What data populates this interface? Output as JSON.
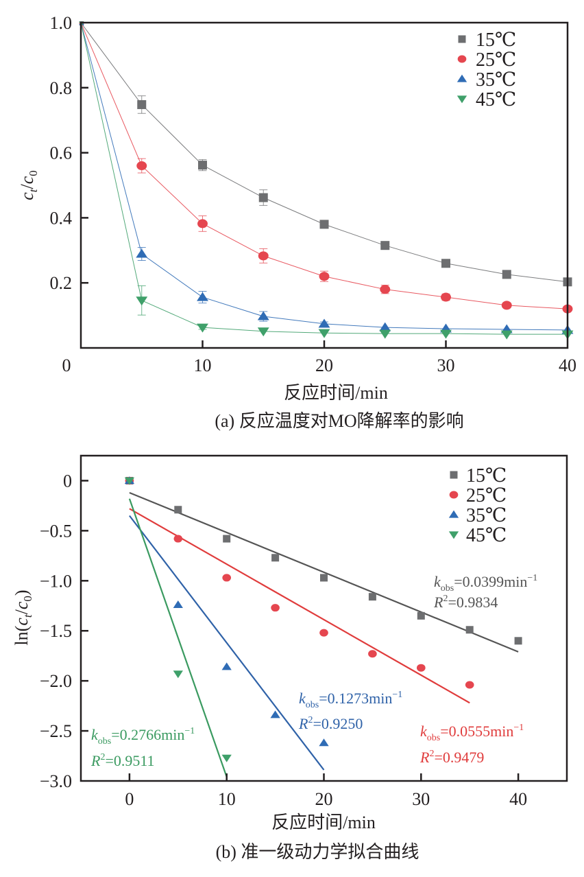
{
  "chart_data": [
    {
      "id": "a",
      "type": "line",
      "caption": "(a) 反应温度对MO降解率的影响",
      "title": "",
      "xlabel": "反应时间/min",
      "ylabel": "c_t/c_0",
      "ylabel_parts": {
        "c1": "c",
        "s1": "t",
        "slash": "/",
        "c2": "c",
        "s2": "0"
      },
      "xlim": [
        0,
        40
      ],
      "ylim": [
        0,
        1.0
      ],
      "xticks": [
        0,
        10,
        20,
        30,
        40
      ],
      "xtick_labels": [
        "0",
        "10",
        "20",
        "30",
        "40"
      ],
      "yticks": [
        0.2,
        0.4,
        0.6,
        0.8,
        1.0
      ],
      "ytick_labels": [
        "0.2",
        "0.4",
        "0.6",
        "0.8",
        "1.0"
      ],
      "grid": false,
      "legend_position": "top-right",
      "x": [
        0,
        5,
        10,
        15,
        20,
        25,
        30,
        35,
        40
      ],
      "series": [
        {
          "name": "15℃",
          "marker": "square",
          "color": "#6d6e70",
          "values": [
            1.0,
            0.748,
            0.562,
            0.462,
            0.38,
            0.315,
            0.26,
            0.226,
            0.203
          ],
          "errors": [
            0,
            0.027,
            0.017,
            0.024,
            0.006,
            0.006,
            0.006,
            0.006,
            0.01
          ]
        },
        {
          "name": "25℃",
          "marker": "circle",
          "color": "#e5464f",
          "values": [
            1.0,
            0.56,
            0.382,
            0.283,
            0.22,
            0.18,
            0.156,
            0.131,
            0.12
          ],
          "errors": [
            0,
            0.022,
            0.024,
            0.022,
            0.016,
            0.013,
            0.01,
            0.006,
            0.006
          ]
        },
        {
          "name": "35℃",
          "marker": "triangle-up",
          "color": "#2f6cb5",
          "values": [
            1.0,
            0.289,
            0.156,
            0.097,
            0.074,
            0.063,
            0.059,
            0.057,
            0.055
          ],
          "errors": [
            0,
            0.02,
            0.018,
            0.015,
            0.006,
            0.005,
            0.005,
            0.005,
            0.005
          ]
        },
        {
          "name": "45℃",
          "marker": "triangle-down",
          "color": "#3fa06a",
          "values": [
            1.0,
            0.146,
            0.063,
            0.051,
            0.046,
            0.044,
            0.044,
            0.042,
            0.042
          ],
          "errors": [
            0,
            0.045,
            0.006,
            0.004,
            0.004,
            0.004,
            0.004,
            0.004,
            0.004
          ]
        }
      ]
    },
    {
      "id": "b",
      "type": "scatter",
      "caption": "(b) 准一级动力学拟合曲线",
      "title": "",
      "xlabel": "反应时间/min",
      "ylabel": "ln(c_t/c_0)",
      "ylabel_parts": {
        "pre": "ln(",
        "c1": "c",
        "s1": "t",
        "slash": "/",
        "c2": "c",
        "s2": "0",
        "post": ")"
      },
      "xlim": [
        -5,
        45
      ],
      "ylim": [
        -3.0,
        0.25
      ],
      "xticks": [
        0,
        10,
        20,
        30,
        40
      ],
      "xtick_labels": [
        "0",
        "10",
        "20",
        "30",
        "40"
      ],
      "yticks": [
        0,
        -0.5,
        -1.0,
        -1.5,
        -2.0,
        -2.5,
        -3.0
      ],
      "ytick_labels": [
        "0",
        "−0.5",
        "−1.0",
        "−1.5",
        "−2.0",
        "−2.5",
        "−3.0"
      ],
      "grid": false,
      "legend_position": "top-right",
      "series": [
        {
          "name": "15℃",
          "marker": "square",
          "color": "#6d6e70",
          "line_color": "#555555",
          "x": [
            0,
            5,
            10,
            15,
            20,
            25,
            30,
            35,
            40
          ],
          "values": [
            0,
            -0.29,
            -0.58,
            -0.77,
            -0.97,
            -1.16,
            -1.35,
            -1.49,
            -1.6
          ],
          "fit": {
            "x": [
              0,
              40
            ],
            "y": [
              -0.12,
              -1.71
            ]
          },
          "annotation": {
            "k_label": "k",
            "k_sub": "obs",
            "k_value": "=0.0399min",
            "k_sup": "−1",
            "r_label": "R",
            "r_sup": "2",
            "r_value": "=0.9834",
            "k_obs": 0.0399,
            "r2": 0.9834
          }
        },
        {
          "name": "25℃",
          "marker": "circle",
          "color": "#e5464f",
          "line_color": "#e03c3c",
          "x": [
            0,
            5,
            10,
            15,
            20,
            25,
            30,
            35
          ],
          "values": [
            0,
            -0.58,
            -0.97,
            -1.27,
            -1.52,
            -1.73,
            -1.87,
            -2.04
          ],
          "fit": {
            "x": [
              0,
              35
            ],
            "y": [
              -0.28,
              -2.22
            ]
          },
          "annotation": {
            "k_label": "k",
            "k_sub": "obs",
            "k_value": "=0.0555min",
            "k_sup": "−1",
            "r_label": "R",
            "r_sup": "2",
            "r_value": "=0.9479",
            "k_obs": 0.0555,
            "r2": 0.9479
          }
        },
        {
          "name": "35℃",
          "marker": "triangle-up",
          "color": "#2f6cb5",
          "line_color": "#2f62a8",
          "x": [
            0,
            5,
            10,
            15,
            20
          ],
          "values": [
            0,
            -1.24,
            -1.86,
            -2.34,
            -2.62
          ],
          "fit": {
            "x": [
              0,
              20
            ],
            "y": [
              -0.35,
              -2.89
            ]
          },
          "annotation": {
            "k_label": "k",
            "k_sub": "obs",
            "k_value": "=0.1273min",
            "k_sup": "−1",
            "r_label": "R",
            "r_sup": "2",
            "r_value": "=0.9250",
            "k_obs": 0.1273,
            "r2": 0.925
          }
        },
        {
          "name": "45℃",
          "marker": "triangle-down",
          "color": "#3fa06a",
          "line_color": "#3a9a60",
          "x": [
            0,
            5,
            10
          ],
          "values": [
            0,
            -1.93,
            -2.77
          ],
          "fit": {
            "x": [
              0,
              10
            ],
            "y": [
              -0.18,
              -2.96
            ]
          },
          "annotation": {
            "k_label": "k",
            "k_sub": "obs",
            "k_value": "=0.2766min",
            "k_sup": "−1",
            "r_label": "R",
            "r_sup": "2",
            "r_value": "=0.9511",
            "k_obs": 0.2766,
            "r2": 0.9511
          }
        }
      ]
    }
  ]
}
